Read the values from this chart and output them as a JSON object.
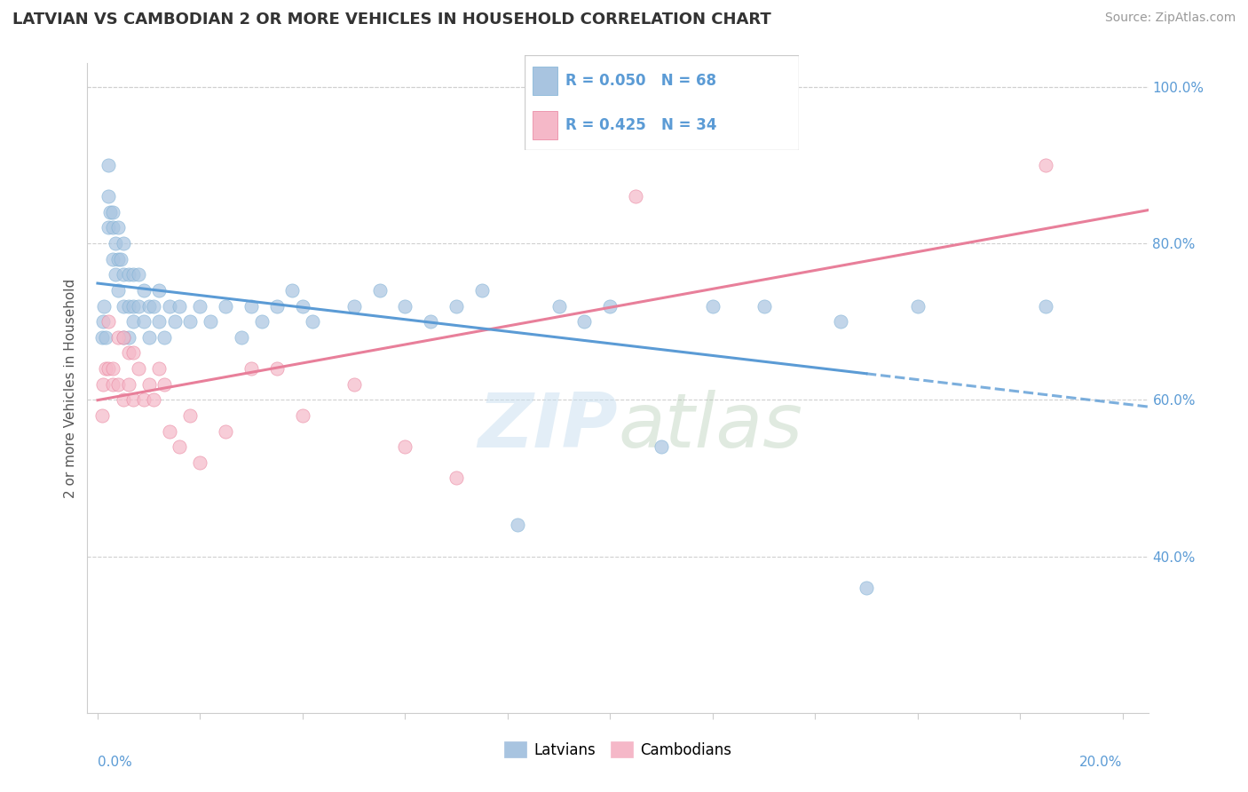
{
  "title": "LATVIAN VS CAMBODIAN 2 OR MORE VEHICLES IN HOUSEHOLD CORRELATION CHART",
  "source": "Source: ZipAtlas.com",
  "ylabel": "2 or more Vehicles in Household",
  "latvian_r": 0.05,
  "latvian_n": 68,
  "cambodian_r": 0.425,
  "cambodian_n": 34,
  "latvian_color": "#a8c4e0",
  "latvian_edge_color": "#7bafd4",
  "cambodian_color": "#f5b8c8",
  "cambodian_edge_color": "#e87f9a",
  "latvian_line_color": "#5b9bd5",
  "cambodian_line_color": "#e87f9a",
  "watermark_color": "#c8dff0",
  "ylim_low": 0.2,
  "ylim_high": 1.03,
  "xlim_low": -0.002,
  "xlim_high": 0.205,
  "latvian_x": [
    0.0008,
    0.001,
    0.0012,
    0.0015,
    0.002,
    0.002,
    0.002,
    0.0025,
    0.003,
    0.003,
    0.003,
    0.0035,
    0.0035,
    0.004,
    0.004,
    0.004,
    0.0045,
    0.005,
    0.005,
    0.005,
    0.005,
    0.006,
    0.006,
    0.006,
    0.007,
    0.007,
    0.007,
    0.008,
    0.008,
    0.009,
    0.009,
    0.01,
    0.01,
    0.011,
    0.012,
    0.012,
    0.013,
    0.014,
    0.015,
    0.016,
    0.018,
    0.02,
    0.022,
    0.025,
    0.028,
    0.03,
    0.032,
    0.035,
    0.038,
    0.04,
    0.042,
    0.05,
    0.055,
    0.06,
    0.065,
    0.07,
    0.075,
    0.082,
    0.09,
    0.095,
    0.1,
    0.11,
    0.12,
    0.13,
    0.145,
    0.15,
    0.16,
    0.185
  ],
  "latvian_y": [
    0.68,
    0.7,
    0.72,
    0.68,
    0.9,
    0.86,
    0.82,
    0.84,
    0.82,
    0.78,
    0.84,
    0.8,
    0.76,
    0.82,
    0.78,
    0.74,
    0.78,
    0.8,
    0.76,
    0.72,
    0.68,
    0.76,
    0.72,
    0.68,
    0.76,
    0.72,
    0.7,
    0.76,
    0.72,
    0.74,
    0.7,
    0.72,
    0.68,
    0.72,
    0.74,
    0.7,
    0.68,
    0.72,
    0.7,
    0.72,
    0.7,
    0.72,
    0.7,
    0.72,
    0.68,
    0.72,
    0.7,
    0.72,
    0.74,
    0.72,
    0.7,
    0.72,
    0.74,
    0.72,
    0.7,
    0.72,
    0.74,
    0.44,
    0.72,
    0.7,
    0.72,
    0.54,
    0.72,
    0.72,
    0.7,
    0.36,
    0.72,
    0.72
  ],
  "cambodian_x": [
    0.0008,
    0.001,
    0.0015,
    0.002,
    0.002,
    0.003,
    0.003,
    0.004,
    0.004,
    0.005,
    0.005,
    0.006,
    0.006,
    0.007,
    0.007,
    0.008,
    0.009,
    0.01,
    0.011,
    0.012,
    0.013,
    0.014,
    0.016,
    0.018,
    0.02,
    0.025,
    0.03,
    0.035,
    0.04,
    0.05,
    0.06,
    0.07,
    0.105,
    0.185
  ],
  "cambodian_y": [
    0.58,
    0.62,
    0.64,
    0.64,
    0.7,
    0.64,
    0.62,
    0.68,
    0.62,
    0.68,
    0.6,
    0.66,
    0.62,
    0.66,
    0.6,
    0.64,
    0.6,
    0.62,
    0.6,
    0.64,
    0.62,
    0.56,
    0.54,
    0.58,
    0.52,
    0.56,
    0.64,
    0.64,
    0.58,
    0.62,
    0.54,
    0.5,
    0.86,
    0.9
  ],
  "right_yticks": [
    0.4,
    0.6,
    0.8,
    1.0
  ],
  "right_ytick_labels": [
    "40.0%",
    "60.0%",
    "80.0%",
    "100.0%"
  ],
  "title_fontsize": 13,
  "source_fontsize": 10,
  "ylabel_fontsize": 11,
  "tick_fontsize": 11,
  "legend_fontsize": 12
}
